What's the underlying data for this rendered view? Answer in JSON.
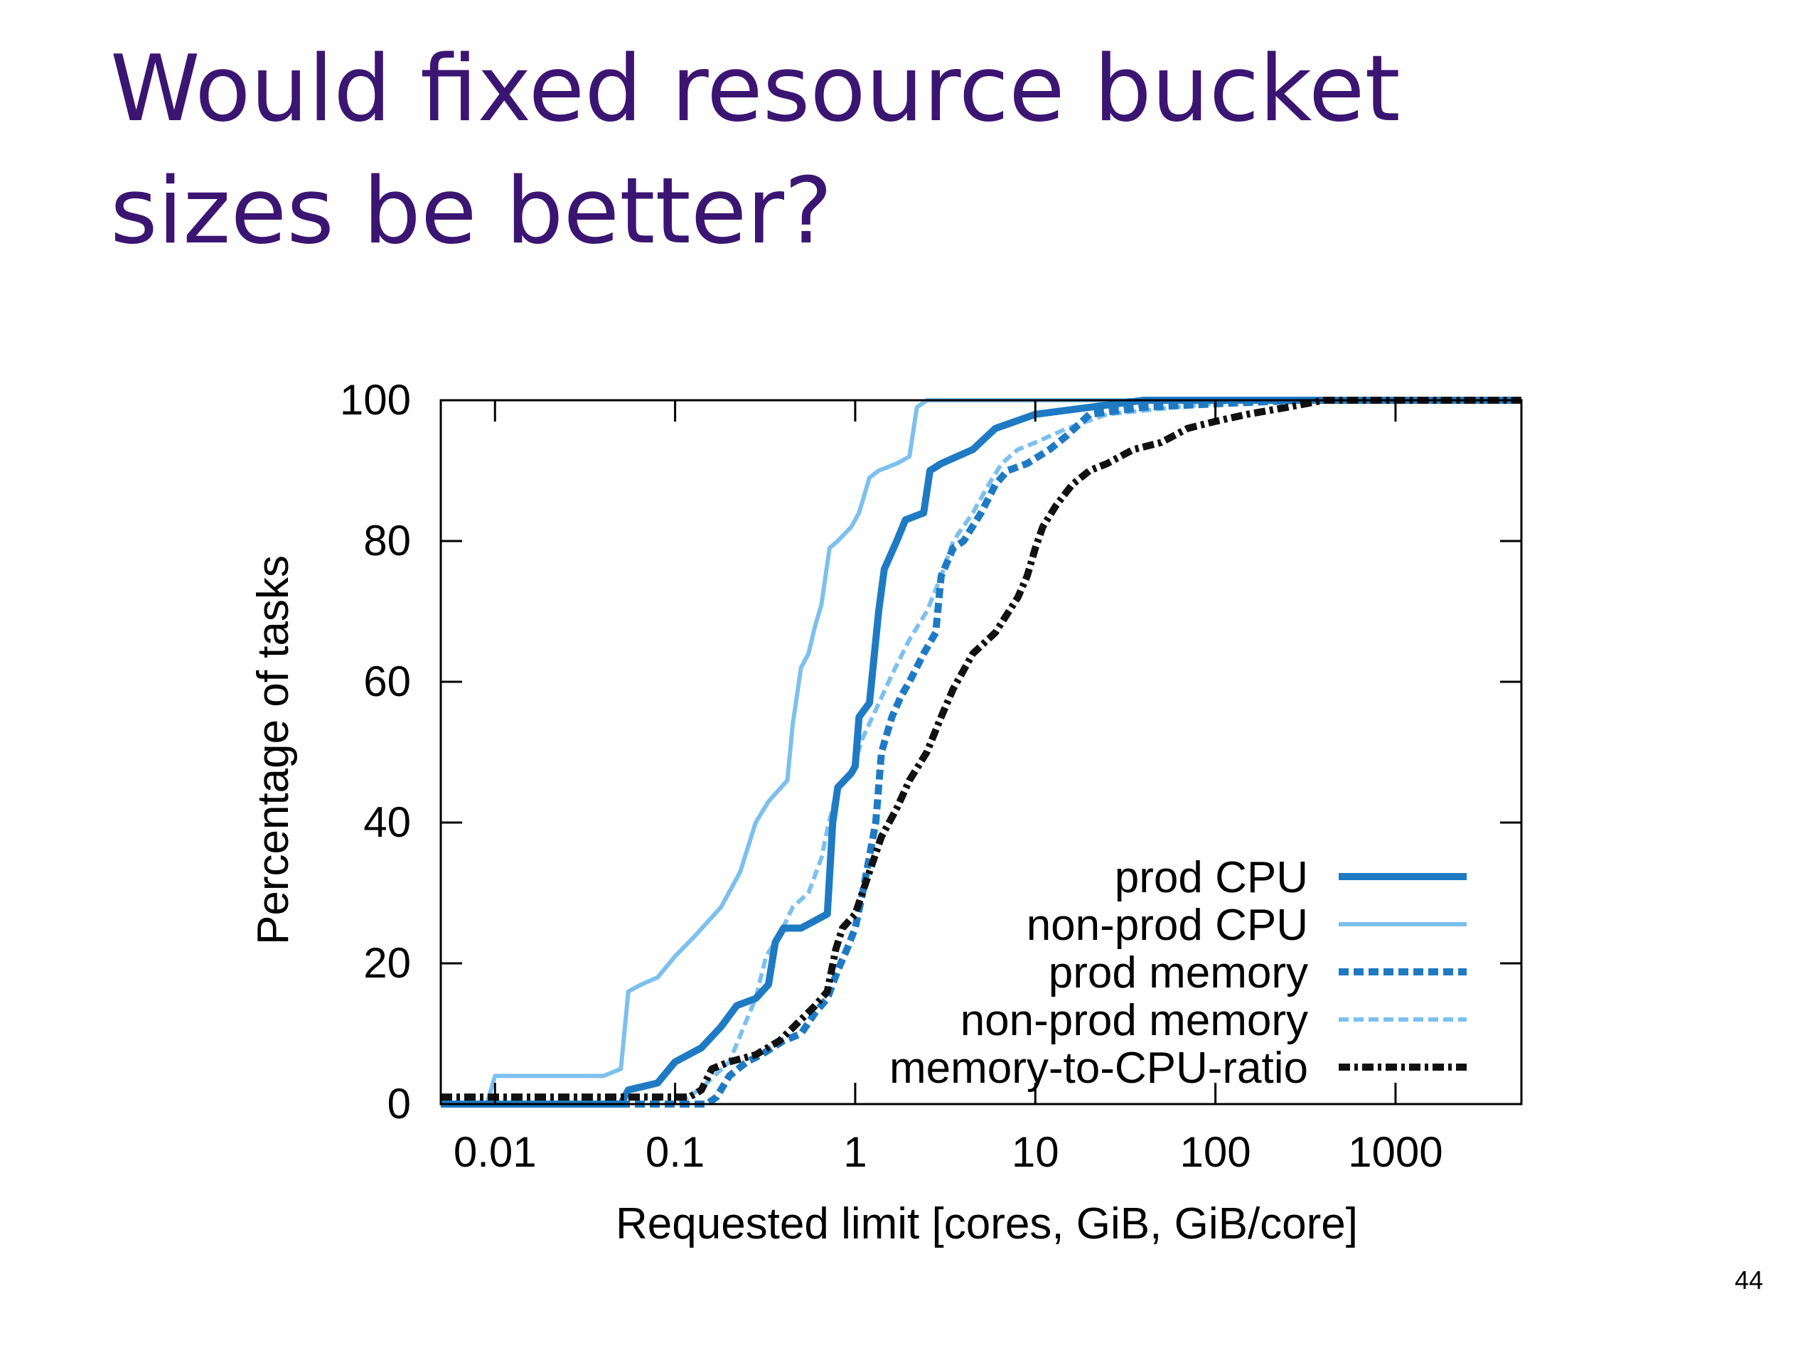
{
  "slide": {
    "title_line1": "Would fixed resource bucket",
    "title_line2": "sizes be better?",
    "page_number": "44"
  },
  "chart_data": {
    "type": "line",
    "title": "",
    "xlabel": "Requested limit [cores, GiB, GiB/core]",
    "ylabel": "Percentage of tasks",
    "x_scale": "log",
    "xlim": [
      0.005,
      5000
    ],
    "ylim": [
      0,
      100
    ],
    "x_ticks": [
      0.01,
      0.1,
      1,
      10,
      100,
      1000
    ],
    "x_tick_labels": [
      "0.01",
      "0.1",
      "1",
      "10",
      "100",
      "1000"
    ],
    "y_ticks": [
      0,
      20,
      40,
      60,
      80,
      100
    ],
    "y_tick_labels": [
      "0",
      "20",
      "40",
      "60",
      "80",
      "100"
    ],
    "grid": false,
    "legend_position": "bottom-right",
    "series": [
      {
        "name": "prod CPU",
        "color": "#1f7ac4",
        "style": "solid-thick",
        "points": [
          [
            0.005,
            0
          ],
          [
            0.05,
            0
          ],
          [
            0.055,
            2
          ],
          [
            0.08,
            3
          ],
          [
            0.1,
            6
          ],
          [
            0.14,
            8
          ],
          [
            0.18,
            11
          ],
          [
            0.22,
            14
          ],
          [
            0.28,
            15
          ],
          [
            0.33,
            17
          ],
          [
            0.36,
            23
          ],
          [
            0.4,
            25
          ],
          [
            0.5,
            25
          ],
          [
            0.7,
            27
          ],
          [
            0.75,
            40
          ],
          [
            0.8,
            45
          ],
          [
            0.95,
            47
          ],
          [
            1.0,
            48
          ],
          [
            1.05,
            55
          ],
          [
            1.2,
            57
          ],
          [
            1.35,
            70
          ],
          [
            1.45,
            76
          ],
          [
            1.7,
            80
          ],
          [
            1.9,
            83
          ],
          [
            2.4,
            84
          ],
          [
            2.6,
            90
          ],
          [
            3.0,
            91
          ],
          [
            4.5,
            93
          ],
          [
            6,
            96
          ],
          [
            10,
            98
          ],
          [
            20,
            99
          ],
          [
            40,
            100
          ],
          [
            5000,
            100
          ]
        ]
      },
      {
        "name": "non-prod CPU",
        "color": "#7cc0ee",
        "style": "solid-thin",
        "points": [
          [
            0.005,
            0
          ],
          [
            0.009,
            0
          ],
          [
            0.01,
            4
          ],
          [
            0.04,
            4
          ],
          [
            0.05,
            5
          ],
          [
            0.055,
            16
          ],
          [
            0.065,
            17
          ],
          [
            0.08,
            18
          ],
          [
            0.1,
            21
          ],
          [
            0.13,
            24
          ],
          [
            0.18,
            28
          ],
          [
            0.23,
            33
          ],
          [
            0.28,
            40
          ],
          [
            0.33,
            43
          ],
          [
            0.42,
            46
          ],
          [
            0.45,
            54
          ],
          [
            0.5,
            62
          ],
          [
            0.55,
            64
          ],
          [
            0.6,
            68
          ],
          [
            0.65,
            71
          ],
          [
            0.72,
            79
          ],
          [
            0.8,
            80
          ],
          [
            0.95,
            82
          ],
          [
            1.05,
            84
          ],
          [
            1.2,
            89
          ],
          [
            1.35,
            90
          ],
          [
            1.7,
            91
          ],
          [
            2.0,
            92
          ],
          [
            2.2,
            99
          ],
          [
            2.5,
            100
          ],
          [
            5000,
            100
          ]
        ]
      },
      {
        "name": "prod memory",
        "color": "#1f7ac4",
        "style": "dashed-thick",
        "points": [
          [
            0.005,
            0
          ],
          [
            0.15,
            0
          ],
          [
            0.17,
            1
          ],
          [
            0.2,
            4
          ],
          [
            0.25,
            6
          ],
          [
            0.3,
            7
          ],
          [
            0.4,
            9
          ],
          [
            0.5,
            10
          ],
          [
            0.6,
            13
          ],
          [
            0.7,
            15
          ],
          [
            0.8,
            19
          ],
          [
            0.9,
            22
          ],
          [
            1.0,
            25
          ],
          [
            1.1,
            30
          ],
          [
            1.3,
            40
          ],
          [
            1.4,
            50
          ],
          [
            1.6,
            55
          ],
          [
            1.8,
            58
          ],
          [
            2.0,
            60
          ],
          [
            2.4,
            64
          ],
          [
            2.8,
            67
          ],
          [
            3.0,
            75
          ],
          [
            3.5,
            79
          ],
          [
            4.0,
            80
          ],
          [
            5.0,
            84
          ],
          [
            6.0,
            88
          ],
          [
            7.0,
            90
          ],
          [
            9.0,
            91
          ],
          [
            12,
            93
          ],
          [
            15,
            95
          ],
          [
            20,
            98
          ],
          [
            40,
            99
          ],
          [
            100,
            99.5
          ],
          [
            300,
            100
          ],
          [
            5000,
            100
          ]
        ]
      },
      {
        "name": "non-prod memory",
        "color": "#7cc0ee",
        "style": "dashed-thin",
        "points": [
          [
            0.005,
            0
          ],
          [
            0.1,
            0
          ],
          [
            0.12,
            1
          ],
          [
            0.15,
            3
          ],
          [
            0.2,
            6
          ],
          [
            0.25,
            12
          ],
          [
            0.28,
            15
          ],
          [
            0.32,
            21
          ],
          [
            0.38,
            24
          ],
          [
            0.45,
            28
          ],
          [
            0.55,
            30
          ],
          [
            0.65,
            35
          ],
          [
            0.7,
            39
          ],
          [
            0.8,
            45
          ],
          [
            0.95,
            47
          ],
          [
            1.1,
            52
          ],
          [
            1.3,
            56
          ],
          [
            1.6,
            61
          ],
          [
            2.0,
            66
          ],
          [
            2.5,
            70
          ],
          [
            3.0,
            75
          ],
          [
            3.5,
            80
          ],
          [
            4.5,
            84
          ],
          [
            5.5,
            88
          ],
          [
            6.5,
            91
          ],
          [
            8,
            93
          ],
          [
            10,
            94
          ],
          [
            15,
            96
          ],
          [
            25,
            98
          ],
          [
            60,
            99
          ],
          [
            150,
            100
          ],
          [
            5000,
            100
          ]
        ]
      },
      {
        "name": "memory-to-CPU-ratio",
        "color": "#111111",
        "style": "dashdot-thick",
        "points": [
          [
            0.005,
            1
          ],
          [
            0.12,
            1
          ],
          [
            0.14,
            2
          ],
          [
            0.16,
            5
          ],
          [
            0.2,
            6
          ],
          [
            0.28,
            7
          ],
          [
            0.38,
            9
          ],
          [
            0.5,
            12
          ],
          [
            0.6,
            14
          ],
          [
            0.7,
            16
          ],
          [
            0.78,
            22
          ],
          [
            0.85,
            25
          ],
          [
            1.0,
            27
          ],
          [
            1.2,
            33
          ],
          [
            1.4,
            38
          ],
          [
            1.7,
            42
          ],
          [
            2.0,
            46
          ],
          [
            2.5,
            50
          ],
          [
            3.0,
            55
          ],
          [
            3.5,
            59
          ],
          [
            4.5,
            64
          ],
          [
            6,
            67
          ],
          [
            8,
            72
          ],
          [
            9,
            75
          ],
          [
            10,
            79
          ],
          [
            11,
            82
          ],
          [
            13,
            85
          ],
          [
            16,
            88
          ],
          [
            20,
            90
          ],
          [
            25,
            91
          ],
          [
            35,
            93
          ],
          [
            50,
            94
          ],
          [
            70,
            96
          ],
          [
            100,
            97
          ],
          [
            150,
            98
          ],
          [
            250,
            99
          ],
          [
            400,
            100
          ],
          [
            5000,
            100
          ]
        ]
      }
    ]
  }
}
